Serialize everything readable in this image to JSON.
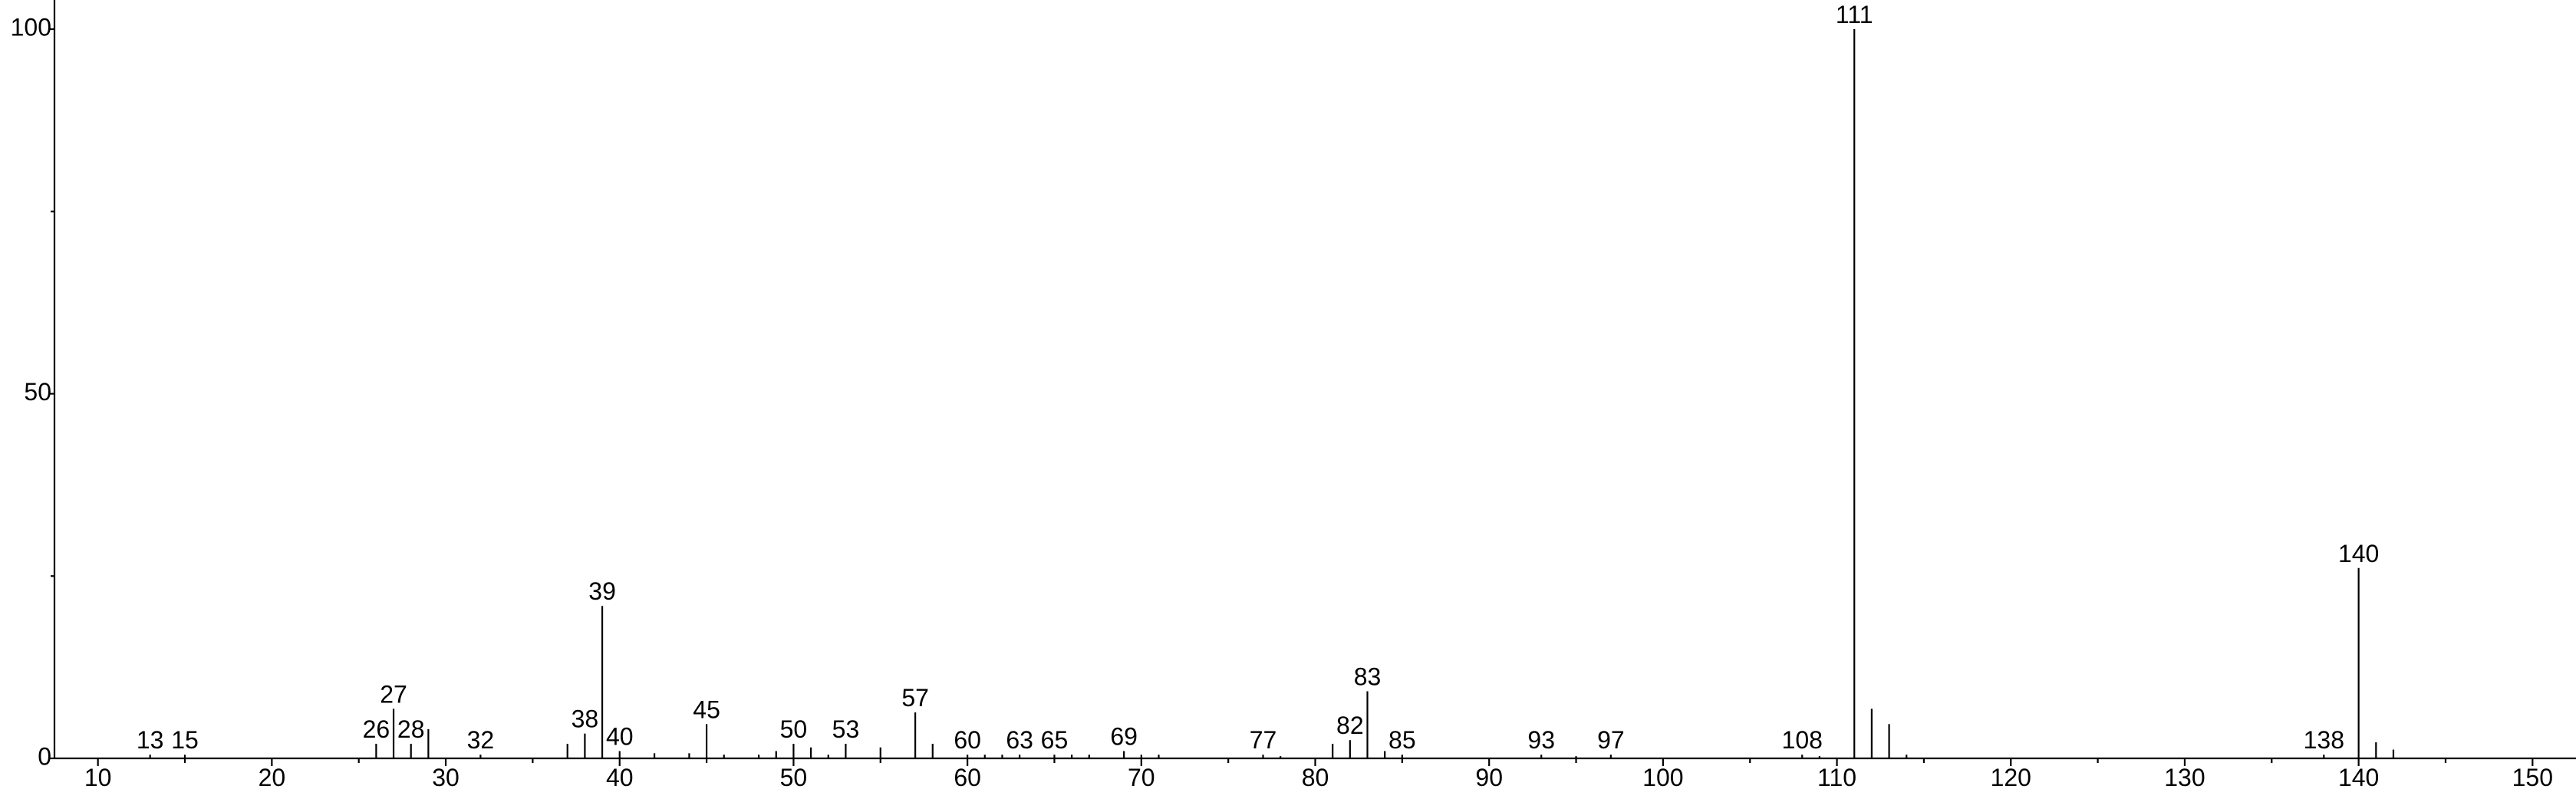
{
  "chart_data": {
    "type": "stem",
    "color": "#000000",
    "x": [
      13,
      15,
      26,
      27,
      28,
      29,
      32,
      37,
      38,
      39,
      40,
      42,
      44,
      45,
      46,
      48,
      49,
      50,
      51,
      52,
      53,
      55,
      57,
      58,
      60,
      61,
      62,
      63,
      65,
      66,
      67,
      69,
      70,
      71,
      77,
      78,
      81,
      82,
      83,
      84,
      85,
      93,
      95,
      97,
      108,
      109,
      111,
      112,
      113,
      114,
      138,
      140,
      141,
      142
    ],
    "values": [
      0.5,
      0.5,
      2,
      6.8,
      2,
      4,
      0.5,
      2,
      3.4,
      20.9,
      1,
      0.7,
      0.7,
      4.7,
      0.5,
      0.5,
      1,
      2,
      1.5,
      0.5,
      2,
      1.5,
      6.3,
      2,
      0.5,
      0.5,
      0.5,
      0.5,
      0.5,
      0.5,
      0.5,
      1,
      0.5,
      0.5,
      0.5,
      0.3,
      2,
      2.5,
      9.2,
      1,
      0.5,
      0.5,
      0.3,
      0.5,
      0.5,
      0.3,
      100,
      6.8,
      4.7,
      0.5,
      0.5,
      26.1,
      2.2,
      1.2
    ],
    "labels": [
      "13",
      "15",
      "26",
      "27",
      "28",
      null,
      "32",
      null,
      "38",
      "39",
      "40",
      null,
      null,
      "45",
      null,
      null,
      null,
      "50",
      null,
      null,
      "53",
      null,
      "57",
      null,
      "60",
      null,
      null,
      "63",
      "65",
      null,
      null,
      "69",
      null,
      null,
      "77",
      null,
      null,
      "82",
      "83",
      null,
      "85",
      "93",
      null,
      "97",
      "108",
      null,
      "111",
      null,
      null,
      null,
      "138",
      "140",
      null,
      null
    ],
    "xlim": [
      7.5,
      152.5
    ],
    "ylim": [
      0,
      104
    ],
    "xticks": [
      10,
      20,
      30,
      40,
      50,
      60,
      70,
      80,
      90,
      100,
      110,
      120,
      130,
      140,
      150
    ],
    "xminorticks": [
      15,
      25,
      35,
      45,
      55,
      65,
      75,
      85,
      95,
      105,
      115,
      125,
      135,
      145
    ],
    "yticks": [
      0,
      50,
      100
    ],
    "yminorticks": [
      25,
      75
    ]
  }
}
